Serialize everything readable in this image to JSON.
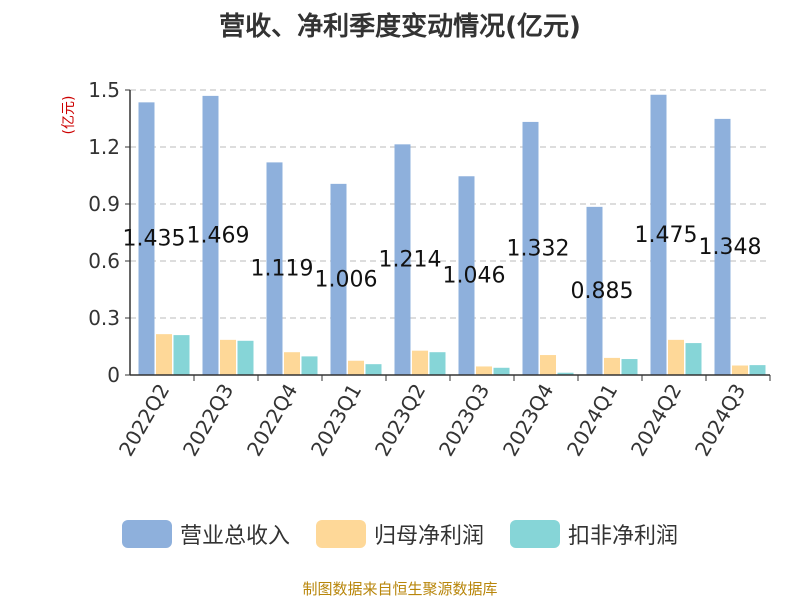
{
  "chart_data": {
    "type": "bar",
    "title": "营收、净利季度变动情况(亿元)",
    "ylabel": "(亿元)",
    "ylim": [
      0,
      1.5
    ],
    "yticks": [
      "0",
      "0.3",
      "0.6",
      "0.9",
      "1.2",
      "1.5"
    ],
    "grid": true,
    "legend_position": "bottom",
    "categories": [
      "2022Q2",
      "2022Q3",
      "2022Q4",
      "2023Q1",
      "2023Q2",
      "2023Q3",
      "2023Q4",
      "2024Q1",
      "2024Q2",
      "2024Q3"
    ],
    "series": [
      {
        "name": "营业总收入",
        "color": "#8eb0dc",
        "values": [
          1.435,
          1.469,
          1.119,
          1.006,
          1.214,
          1.046,
          1.332,
          0.885,
          1.475,
          1.348
        ],
        "labels": [
          "1.435",
          "1.469",
          "1.119",
          "1.006",
          "1.214",
          "1.046",
          "1.332",
          "0.885",
          "1.475",
          "1.348"
        ]
      },
      {
        "name": "归母净利润",
        "color": "#fed898",
        "values": [
          0.215,
          0.185,
          0.12,
          0.075,
          0.128,
          0.045,
          0.105,
          0.09,
          0.185,
          0.05
        ]
      },
      {
        "name": "扣非净利润",
        "color": "#86d5d7",
        "values": [
          0.21,
          0.18,
          0.098,
          0.057,
          0.12,
          0.038,
          0.012,
          0.084,
          0.168,
          0.052
        ]
      }
    ]
  },
  "source": "制图数据来自恒生聚源数据库"
}
